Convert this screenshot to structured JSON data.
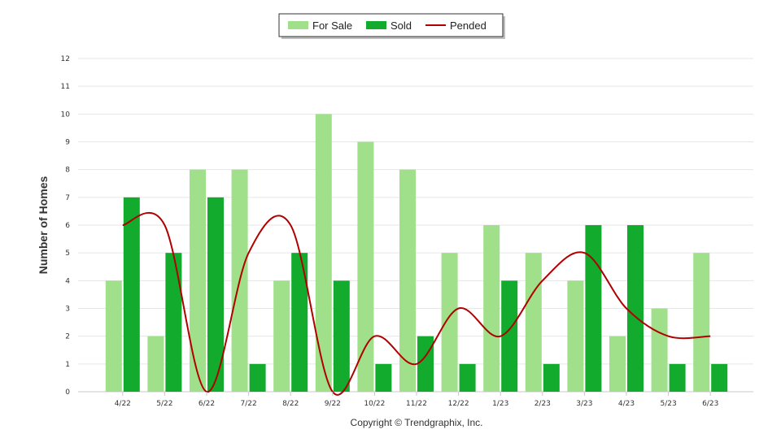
{
  "chart_data": {
    "type": "bar",
    "categories": [
      "4/22",
      "5/22",
      "6/22",
      "7/22",
      "8/22",
      "9/22",
      "10/22",
      "11/22",
      "12/22",
      "1/23",
      "2/23",
      "3/23",
      "4/23",
      "5/23",
      "6/23"
    ],
    "series": [
      {
        "name": "For Sale",
        "kind": "bar",
        "color": "#a0e08a",
        "values": [
          4,
          2,
          8,
          8,
          4,
          10,
          9,
          8,
          5,
          6,
          5,
          4,
          2,
          3,
          5
        ]
      },
      {
        "name": "Sold",
        "kind": "bar",
        "color": "#12ab2e",
        "values": [
          7,
          5,
          7,
          1,
          5,
          4,
          1,
          2,
          1,
          4,
          1,
          6,
          6,
          1,
          1
        ]
      },
      {
        "name": "Pended",
        "kind": "line",
        "color": "#b00000",
        "values": [
          6,
          6,
          0,
          5,
          6,
          0,
          2,
          1,
          3,
          2,
          4,
          5,
          3,
          2,
          2
        ]
      }
    ],
    "ylabel": "Number of Homes",
    "xlabel": "",
    "ylim": [
      0,
      12
    ],
    "yticks": [
      0,
      1,
      2,
      3,
      4,
      5,
      6,
      7,
      8,
      9,
      10,
      11,
      12
    ],
    "grid": true,
    "legend_position": "top-center",
    "credit": "Copyright © Trendgraphix, Inc."
  }
}
